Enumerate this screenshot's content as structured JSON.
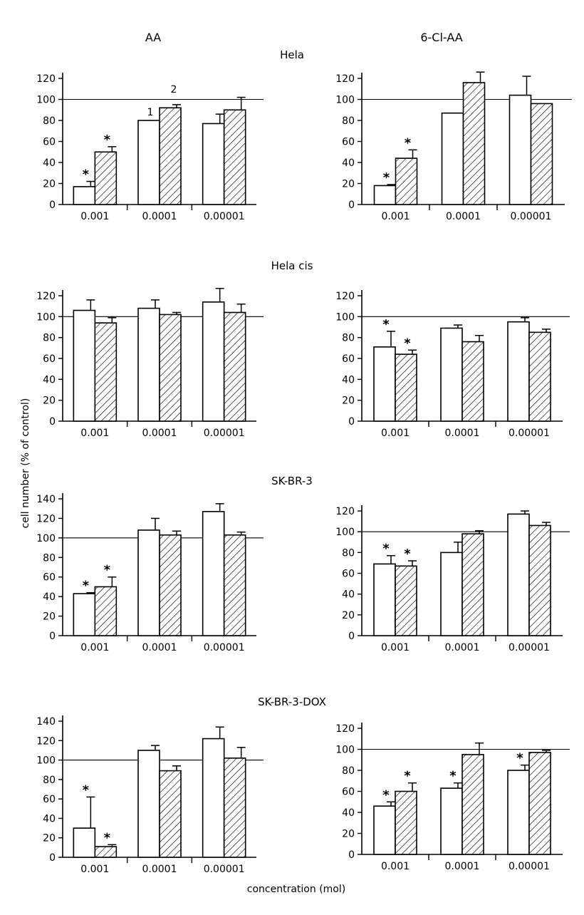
{
  "figure": {
    "column_titles": [
      "AA",
      "6-Cl-AA"
    ],
    "row_titles": [
      "Hela",
      "Hela cis",
      "SK-BR-3",
      "SK-BR-3-DOX"
    ],
    "ylabel": "cell number (% of control)",
    "xlabel": "concentration (mol)",
    "bar_numbers": [
      "1",
      "2"
    ],
    "significance_marker": "*",
    "colors": {
      "line": "#000000",
      "background": "#ffffff"
    }
  },
  "chart_data": [
    {
      "type": "bar",
      "row": "Hela",
      "column": "AA",
      "categories": [
        "0.001",
        "0.0001",
        "0.00001"
      ],
      "ylim": [
        0,
        120
      ],
      "yticks": [
        0,
        20,
        40,
        60,
        80,
        100,
        120
      ],
      "reference_line": 100,
      "series": [
        {
          "values": [
            17,
            80,
            77
          ],
          "errors": [
            5,
            0,
            9
          ],
          "significant": [
            true,
            false,
            false
          ]
        },
        {
          "values": [
            50,
            92,
            90
          ],
          "errors": [
            5,
            3,
            12
          ],
          "significant": [
            true,
            false,
            false
          ]
        }
      ]
    },
    {
      "type": "bar",
      "row": "Hela",
      "column": "6-Cl-AA",
      "categories": [
        "0.001",
        "0.0001",
        "0.00001"
      ],
      "ylim": [
        0,
        120
      ],
      "yticks": [
        0,
        20,
        40,
        60,
        80,
        100,
        120
      ],
      "reference_line": 100,
      "series": [
        {
          "values": [
            18,
            87,
            104
          ],
          "errors": [
            1,
            0,
            18
          ],
          "significant": [
            true,
            false,
            false
          ]
        },
        {
          "values": [
            44,
            116,
            96
          ],
          "errors": [
            8,
            10,
            0
          ],
          "significant": [
            true,
            false,
            false
          ]
        }
      ]
    },
    {
      "type": "bar",
      "row": "Hela cis",
      "column": "AA",
      "categories": [
        "0.001",
        "0.0001",
        "0.00001"
      ],
      "ylim": [
        0,
        120
      ],
      "yticks": [
        0,
        20,
        40,
        60,
        80,
        100,
        120
      ],
      "reference_line": 100,
      "series": [
        {
          "values": [
            106,
            108,
            114
          ],
          "errors": [
            10,
            8,
            13
          ],
          "significant": [
            false,
            false,
            false
          ]
        },
        {
          "values": [
            94,
            102,
            104
          ],
          "errors": [
            5,
            2,
            8
          ],
          "significant": [
            false,
            false,
            false
          ]
        }
      ]
    },
    {
      "type": "bar",
      "row": "Hela cis",
      "column": "6-Cl-AA",
      "categories": [
        "0.001",
        "0.0001",
        "0.00001"
      ],
      "ylim": [
        0,
        120
      ],
      "yticks": [
        0,
        20,
        40,
        60,
        80,
        100,
        120
      ],
      "reference_line": 100,
      "series": [
        {
          "values": [
            71,
            89,
            95
          ],
          "errors": [
            15,
            3,
            4
          ],
          "significant": [
            true,
            false,
            false
          ]
        },
        {
          "values": [
            64,
            76,
            85
          ],
          "errors": [
            4,
            6,
            3
          ],
          "significant": [
            true,
            false,
            false
          ]
        }
      ]
    },
    {
      "type": "bar",
      "row": "SK-BR-3",
      "column": "AA",
      "categories": [
        "0.001",
        "0.0001",
        "0.00001"
      ],
      "ylim": [
        0,
        140
      ],
      "yticks": [
        0,
        20,
        40,
        60,
        80,
        100,
        120,
        140
      ],
      "reference_line": 100,
      "series": [
        {
          "values": [
            43,
            108,
            127
          ],
          "errors": [
            1,
            12,
            8
          ],
          "significant": [
            true,
            false,
            false
          ]
        },
        {
          "values": [
            50,
            103,
            103
          ],
          "errors": [
            10,
            4,
            3
          ],
          "significant": [
            true,
            false,
            false
          ]
        }
      ]
    },
    {
      "type": "bar",
      "row": "SK-BR-3",
      "column": "6-Cl-AA",
      "categories": [
        "0.001",
        "0.0001",
        "0.00001"
      ],
      "ylim": [
        0,
        120
      ],
      "yticks": [
        0,
        20,
        40,
        60,
        80,
        100,
        120
      ],
      "reference_line": 100,
      "series": [
        {
          "values": [
            69,
            80,
            117
          ],
          "errors": [
            8,
            10,
            3
          ],
          "significant": [
            true,
            false,
            false
          ]
        },
        {
          "values": [
            67,
            98,
            106
          ],
          "errors": [
            5,
            3,
            3
          ],
          "significant": [
            true,
            false,
            false
          ]
        }
      ]
    },
    {
      "type": "bar",
      "row": "SK-BR-3-DOX",
      "column": "AA",
      "categories": [
        "0.001",
        "0.0001",
        "0.00001"
      ],
      "ylim": [
        0,
        140
      ],
      "yticks": [
        0,
        20,
        40,
        60,
        80,
        100,
        120,
        140
      ],
      "reference_line": 100,
      "series": [
        {
          "values": [
            30,
            110,
            122
          ],
          "errors": [
            32,
            5,
            12
          ],
          "significant": [
            true,
            false,
            false
          ]
        },
        {
          "values": [
            11,
            89,
            102
          ],
          "errors": [
            2,
            5,
            11
          ],
          "significant": [
            true,
            false,
            false
          ]
        }
      ]
    },
    {
      "type": "bar",
      "row": "SK-BR-3-DOX",
      "column": "6-Cl-AA",
      "categories": [
        "0.001",
        "0.0001",
        "0.00001"
      ],
      "ylim": [
        0,
        120
      ],
      "yticks": [
        0,
        20,
        40,
        60,
        80,
        100,
        120
      ],
      "reference_line": 100,
      "series": [
        {
          "values": [
            46,
            63,
            80
          ],
          "errors": [
            4,
            5,
            5
          ],
          "significant": [
            true,
            true,
            true
          ]
        },
        {
          "values": [
            60,
            95,
            97
          ],
          "errors": [
            8,
            11,
            2
          ],
          "significant": [
            true,
            false,
            false
          ]
        }
      ]
    }
  ]
}
